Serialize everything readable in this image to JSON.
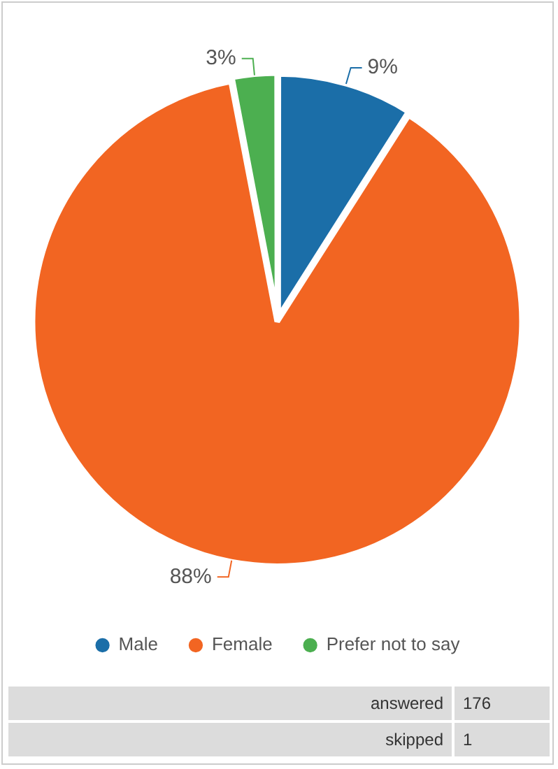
{
  "chart_data": {
    "type": "pie",
    "categories": [
      "Male",
      "Female",
      "Prefer not to say"
    ],
    "values": [
      9,
      88,
      3
    ],
    "colors": [
      "#1b6ea8",
      "#f26522",
      "#4caf50"
    ],
    "value_labels": [
      "9%",
      "88%",
      "3%"
    ],
    "legend": "bottom",
    "annotations": [
      "answered",
      "176",
      "skipped",
      "1"
    ]
  }
}
